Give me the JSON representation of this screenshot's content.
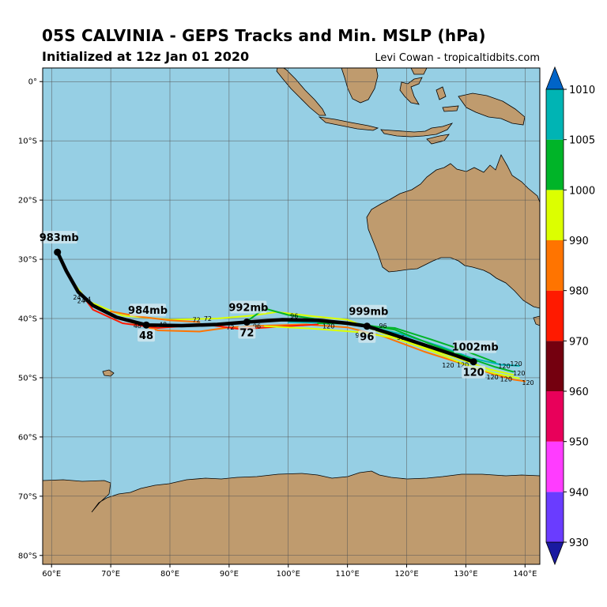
{
  "header": {
    "title": "05S CALVINIA - GEPS Tracks and Min. MSLP (hPa)",
    "subtitle": "Initialized at 12z Jan 01 2020",
    "credit": "Levi Cowan - tropicaltidbits.com"
  },
  "map": {
    "lon_range": [
      58.5,
      142.5
    ],
    "lat_range": [
      -81.5,
      2.3
    ],
    "lon_ticks": [
      {
        "value": 60,
        "label": "60°E"
      },
      {
        "value": 70,
        "label": "70°E"
      },
      {
        "value": 80,
        "label": "80°E"
      },
      {
        "value": 90,
        "label": "90°E"
      },
      {
        "value": 100,
        "label": "100°E"
      },
      {
        "value": 110,
        "label": "110°E"
      },
      {
        "value": 120,
        "label": "120°E"
      },
      {
        "value": 130,
        "label": "130°E"
      },
      {
        "value": 140,
        "label": "140°E"
      }
    ],
    "lat_ticks": [
      {
        "value": 0,
        "label": "0°"
      },
      {
        "value": -10,
        "label": "10°S"
      },
      {
        "value": -20,
        "label": "20°S"
      },
      {
        "value": -30,
        "label": "30°S"
      },
      {
        "value": -40,
        "label": "40°S"
      },
      {
        "value": -50,
        "label": "50°S"
      },
      {
        "value": -60,
        "label": "60°S"
      },
      {
        "value": -70,
        "label": "70°S"
      },
      {
        "value": -80,
        "label": "80°S"
      }
    ],
    "colors": {
      "ocean": "#96cfe4",
      "land": "#bf9b6e",
      "grid": "#555555"
    }
  },
  "colorbar": {
    "levels": [
      930,
      940,
      950,
      960,
      970,
      980,
      990,
      1000,
      1005,
      1010
    ],
    "labels": [
      "930",
      "940",
      "950",
      "960",
      "970",
      "980",
      "990",
      "1000",
      "1005",
      "1010"
    ],
    "colors": [
      "#6a3cff",
      "#ff3cff",
      "#e8005a",
      "#74000f",
      "#ff1a00",
      "#ff7400",
      "#dcff00",
      "#00b428",
      "#00b4b4"
    ],
    "under_color": "#1a1aa0",
    "over_color": "#0064c8"
  },
  "mean_track": {
    "points": [
      {
        "lon": 61.0,
        "lat": -28.8
      },
      {
        "lon": 62.5,
        "lat": -32.0
      },
      {
        "lon": 64.5,
        "lat": -35.5
      },
      {
        "lon": 67.0,
        "lat": -37.8
      },
      {
        "lon": 71.0,
        "lat": -39.8
      },
      {
        "lon": 76.0,
        "lat": -41.1
      },
      {
        "lon": 82.0,
        "lat": -41.2
      },
      {
        "lon": 88.0,
        "lat": -41.0
      },
      {
        "lon": 93.0,
        "lat": -40.6
      },
      {
        "lon": 99.0,
        "lat": -40.2
      },
      {
        "lon": 105.0,
        "lat": -40.3
      },
      {
        "lon": 110.0,
        "lat": -40.8
      },
      {
        "lon": 113.3,
        "lat": -41.3
      },
      {
        "lon": 118.0,
        "lat": -42.8
      },
      {
        "lon": 124.0,
        "lat": -44.8
      },
      {
        "lon": 128.5,
        "lat": -46.3
      },
      {
        "lon": 131.3,
        "lat": -47.3
      }
    ],
    "markers": [
      {
        "lon": 61.0,
        "lat": -28.8,
        "mslp": "983mb",
        "hour": ""
      },
      {
        "lon": 76.0,
        "lat": -41.1,
        "mslp": "984mb",
        "hour": "48"
      },
      {
        "lon": 93.0,
        "lat": -40.6,
        "mslp": "992mb",
        "hour": "72"
      },
      {
        "lon": 113.3,
        "lat": -41.3,
        "mslp": "999mb",
        "hour": "96"
      },
      {
        "lon": 131.3,
        "lat": -47.3,
        "mslp": "1002mb",
        "hour": "120"
      }
    ]
  },
  "members": [
    {
      "color": "#ff7400",
      "points": [
        [
          61.0,
          -28.8
        ],
        [
          63.5,
          -33.8
        ],
        [
          66.5,
          -37.5
        ],
        [
          72,
          -40.2
        ],
        [
          78,
          -42.0
        ],
        [
          85,
          -42.2
        ],
        [
          90,
          -41.5
        ],
        [
          96,
          -41.2
        ],
        [
          103,
          -41.0
        ],
        [
          110,
          -41.5
        ],
        [
          116,
          -43.0
        ],
        [
          123,
          -45.6
        ],
        [
          129,
          -47.5
        ],
        [
          134,
          -49.2
        ],
        [
          138,
          -50.3
        ],
        [
          140,
          -50.6
        ]
      ]
    },
    {
      "color": "#ff1a00",
      "points": [
        [
          61.0,
          -28.8
        ],
        [
          64,
          -34.5
        ],
        [
          67,
          -38.5
        ],
        [
          72,
          -40.8
        ],
        [
          78,
          -41.6
        ],
        [
          86,
          -41.0
        ],
        [
          92,
          -41.8
        ],
        [
          98,
          -41.4
        ],
        [
          105,
          -41.0
        ]
      ]
    },
    {
      "color": "#dcff00",
      "points": [
        [
          61.0,
          -28.8
        ],
        [
          63,
          -33
        ],
        [
          66,
          -37
        ],
        [
          72,
          -39.5
        ],
        [
          80,
          -40.2
        ],
        [
          88,
          -40.0
        ],
        [
          94,
          -39.5
        ],
        [
          98,
          -38.9
        ],
        [
          104,
          -39.6
        ],
        [
          110,
          -40.2
        ],
        [
          116,
          -42.5
        ],
        [
          122,
          -44.6
        ],
        [
          128,
          -46.5
        ],
        [
          134,
          -48.6
        ],
        [
          138,
          -49.5
        ]
      ]
    },
    {
      "color": "#00b428",
      "points": [
        [
          93,
          -40.5
        ],
        [
          96,
          -38.3
        ],
        [
          100,
          -39.4
        ],
        [
          106,
          -40.3
        ],
        [
          112,
          -41.2
        ],
        [
          118,
          -41.6
        ],
        [
          124,
          -43.5
        ],
        [
          130,
          -45.5
        ],
        [
          135,
          -47.4
        ]
      ]
    },
    {
      "color": "#00b4b4",
      "points": [
        [
          100,
          -40.6
        ],
        [
          108,
          -40.8
        ],
        [
          113,
          -41.2
        ],
        [
          119,
          -42.6
        ],
        [
          126,
          -44.8
        ],
        [
          131,
          -46.7
        ],
        [
          136,
          -47.8
        ],
        [
          139,
          -48.0
        ]
      ]
    },
    {
      "color": "#00b428",
      "points": [
        [
          105,
          -40.8
        ],
        [
          112,
          -40.9
        ],
        [
          118,
          -41.9
        ],
        [
          124,
          -44.3
        ],
        [
          130,
          -46.5
        ],
        [
          135,
          -48.2
        ],
        [
          138,
          -49.0
        ]
      ]
    },
    {
      "color": "#dcff00",
      "points": [
        [
          96,
          -41.3
        ],
        [
          104,
          -41.7
        ],
        [
          112,
          -42.3
        ],
        [
          118,
          -43.3
        ],
        [
          124,
          -45.4
        ],
        [
          130,
          -47.8
        ],
        [
          135,
          -49.3
        ],
        [
          139,
          -50.1
        ]
      ]
    },
    {
      "color": "#ff7400",
      "points": [
        [
          70,
          -38.8
        ],
        [
          75,
          -39.7
        ],
        [
          80,
          -40.3
        ],
        [
          85,
          -40.6
        ]
      ]
    }
  ],
  "hour_labels": [
    {
      "lon": 64.3,
      "lat": -36.4,
      "text": "24"
    },
    {
      "lon": 65.0,
      "lat": -37.0,
      "text": "24"
    },
    {
      "lon": 66.0,
      "lat": -36.7,
      "text": "24"
    },
    {
      "lon": 78.8,
      "lat": -41.0,
      "text": "48"
    },
    {
      "lon": 74.5,
      "lat": -41.2,
      "text": "48"
    },
    {
      "lon": 84.5,
      "lat": -40.2,
      "text": "72"
    },
    {
      "lon": 86.4,
      "lat": -40.0,
      "text": "72"
    },
    {
      "lon": 90.2,
      "lat": -41.5,
      "text": "72"
    },
    {
      "lon": 95.6,
      "lat": -38.1,
      "text": "96"
    },
    {
      "lon": 101.0,
      "lat": -39.5,
      "text": "96"
    },
    {
      "lon": 94.7,
      "lat": -41.3,
      "text": "96"
    },
    {
      "lon": 106.8,
      "lat": -41.3,
      "text": "120"
    },
    {
      "lon": 116.0,
      "lat": -41.2,
      "text": "96"
    },
    {
      "lon": 112.0,
      "lat": -42.8,
      "text": "96"
    },
    {
      "lon": 119.0,
      "lat": -43.2,
      "text": "96"
    },
    {
      "lon": 127.0,
      "lat": -47.9,
      "text": "120"
    },
    {
      "lon": 129.5,
      "lat": -47.8,
      "text": "120"
    },
    {
      "lon": 136.5,
      "lat": -48.0,
      "text": "120"
    },
    {
      "lon": 138.5,
      "lat": -47.6,
      "text": "120"
    },
    {
      "lon": 139.0,
      "lat": -49.2,
      "text": "120"
    },
    {
      "lon": 134.5,
      "lat": -49.9,
      "text": "120"
    },
    {
      "lon": 136.8,
      "lat": -50.2,
      "text": "120"
    },
    {
      "lon": 140.5,
      "lat": -50.8,
      "text": "120"
    }
  ]
}
